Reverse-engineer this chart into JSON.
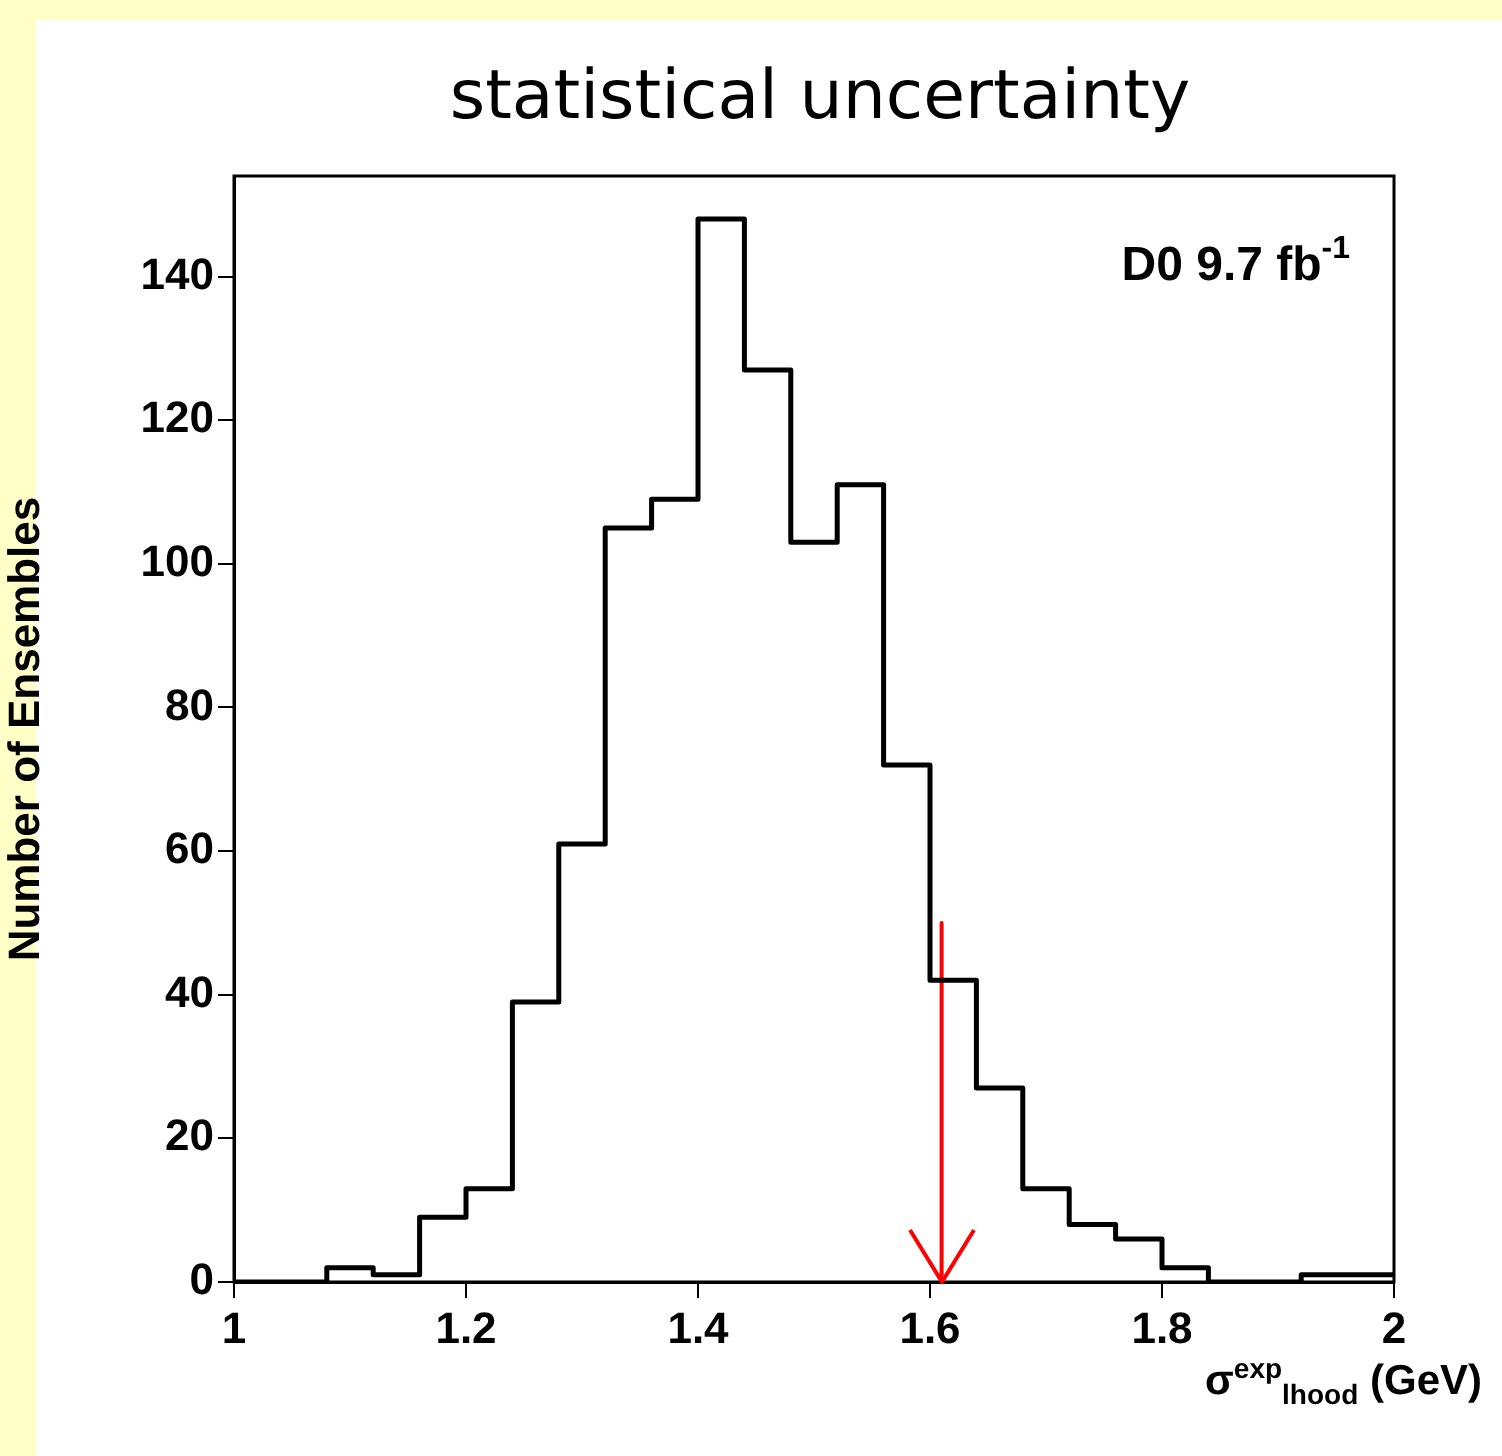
{
  "chart_data": {
    "type": "histogram",
    "title": "statistical uncertainty",
    "xlabel": "σ$^{exp}$$_{lhood}$ (GeV)",
    "ylabel": "Number of Ensembles",
    "annotations": [
      "D0 9.7 fb$^{-1}$"
    ],
    "bins": [
      1,
      1.04,
      1.08,
      1.12,
      1.16,
      1.2,
      1.24,
      1.28,
      1.32,
      1.36,
      1.4,
      1.44,
      1.48,
      1.52,
      1.56,
      1.6,
      1.64,
      1.68,
      1.72,
      1.76,
      1.8,
      1.84,
      1.88,
      1.92,
      1.96,
      2
    ],
    "series": [
      {
        "color": "#000000",
        "values": [
          0,
          0,
          2,
          1,
          9,
          13,
          39,
          61,
          105,
          109,
          148,
          127,
          103,
          111,
          72,
          42,
          27,
          13,
          8,
          6,
          2,
          0,
          0,
          1,
          1
        ]
      },
      {
        "type": "line",
        "color": "#ff0000",
        "x": [
          1.61,
          1.61
        ],
        "values": [
          50,
          0
        ]
      }
    ],
    "xlim": [
      1,
      2
    ],
    "xticks": [
      1,
      1.2,
      1.4,
      1.6,
      1.8,
      2
    ],
    "ylim": [
      0,
      154
    ],
    "yticks": [
      0,
      20,
      40,
      60,
      80,
      100,
      120,
      140
    ],
    "grid": false,
    "legend": false
  }
}
